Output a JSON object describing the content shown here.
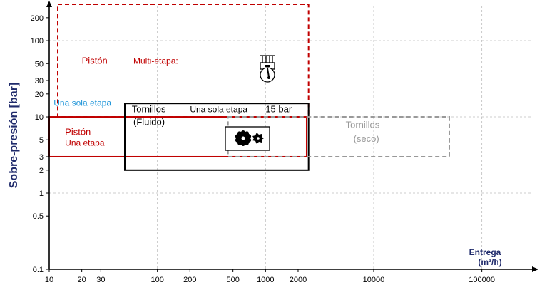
{
  "chart_data": {
    "type": "region-chart",
    "ylabel": "Sobre-presión [bar]",
    "xlabel": "Entrega",
    "xlabel_unit": "(m³/h)",
    "xscale": "log",
    "yscale": "log",
    "xlim": [
      10,
      300000
    ],
    "ylim": [
      0.1,
      300
    ],
    "x_ticks": [
      {
        "v": 10,
        "label": "10",
        "grid": false
      },
      {
        "v": 20,
        "label": "20",
        "grid": false
      },
      {
        "v": 30,
        "label": "30",
        "grid": false
      },
      {
        "v": 100,
        "label": "100",
        "grid": true
      },
      {
        "v": 200,
        "label": "200",
        "grid": false
      },
      {
        "v": 500,
        "label": "500",
        "grid": false
      },
      {
        "v": 1000,
        "label": "1000",
        "grid": true
      },
      {
        "v": 2000,
        "label": "2000",
        "grid": false
      },
      {
        "v": 10000,
        "label": "10000",
        "grid": true
      },
      {
        "v": 100000,
        "label": "100000",
        "grid": true
      }
    ],
    "y_ticks": [
      {
        "v": 200,
        "label": "200",
        "grid": false
      },
      {
        "v": 100,
        "label": "100",
        "grid": true
      },
      {
        "v": 50,
        "label": "50",
        "grid": false
      },
      {
        "v": 30,
        "label": "30",
        "grid": false
      },
      {
        "v": 20,
        "label": "20",
        "grid": false
      },
      {
        "v": 10,
        "label": "10",
        "grid": true
      },
      {
        "v": 5,
        "label": "5",
        "grid": false
      },
      {
        "v": 3,
        "label": "3",
        "grid": false
      },
      {
        "v": 2,
        "label": "2",
        "grid": false
      },
      {
        "v": 1,
        "label": "1",
        "grid": true
      },
      {
        "v": 0.5,
        "label": "0.5",
        "grid": false
      },
      {
        "v": 0.1,
        "label": "0.1",
        "grid": false
      }
    ],
    "regions": [
      {
        "name": "Pistón Multi-etapa",
        "x": [
          12,
          2500
        ],
        "y": [
          10,
          300
        ],
        "color": "#c00000",
        "dash": true
      },
      {
        "name": "Pistón Una etapa",
        "x": [
          10,
          2400
        ],
        "y": [
          3,
          10
        ],
        "color": "#c00000",
        "dash": false
      },
      {
        "name": "Tornillos (Fluido)",
        "x": [
          50,
          2500
        ],
        "y": [
          2,
          15
        ],
        "color": "#000000",
        "dash": false
      },
      {
        "name": "Tornillos (seco)",
        "x": [
          450,
          50000
        ],
        "y": [
          3,
          10
        ],
        "color": "#999999",
        "dash": true
      }
    ],
    "labels": [
      {
        "text": "Pistón",
        "x": 20,
        "y": 50,
        "color": "#c00000",
        "size": 13
      },
      {
        "text": "Multi-etapa:",
        "x": 60,
        "y": 50,
        "color": "#c00000",
        "size": 12
      },
      {
        "text": "Una sola etapa",
        "x": 11,
        "y": 14,
        "color": "#2196d9",
        "size": 12
      },
      {
        "text": "Tornillos",
        "x": 58,
        "y": 11.5,
        "color": "#000000",
        "size": 13
      },
      {
        "text": "Una sola etapa",
        "x": 200,
        "y": 11.5,
        "color": "#000000",
        "size": 12
      },
      {
        "text": "15 bar",
        "x": 1000,
        "y": 11.5,
        "color": "#000000",
        "size": 13
      },
      {
        "text": "(Fluido)",
        "x": 60,
        "y": 7.8,
        "color": "#000000",
        "size": 13
      },
      {
        "text": "Pistón",
        "x": 14,
        "y": 5.8,
        "color": "#c00000",
        "size": 13
      },
      {
        "text": "Una etapa",
        "x": 14,
        "y": 4.2,
        "color": "#c00000",
        "size": 12
      },
      {
        "text": "Tornillos",
        "x": 5500,
        "y": 7.2,
        "color": "#999999",
        "size": 13
      },
      {
        "text": "(seco)",
        "x": 6500,
        "y": 4.7,
        "color": "#999999",
        "size": 13
      }
    ]
  }
}
